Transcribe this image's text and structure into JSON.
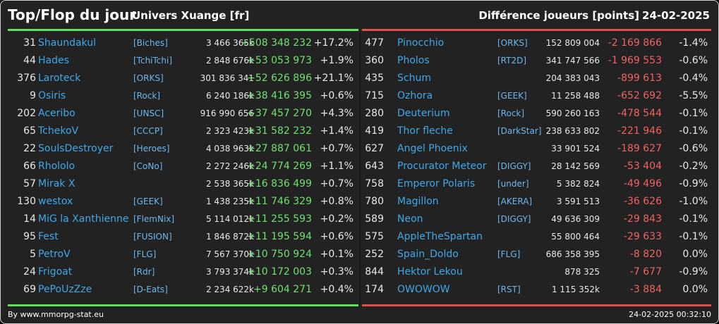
{
  "header": {
    "title": "Top/Flop du jour",
    "subtitle": "Univers Xuange [fr]",
    "diff_label": "Différence joueurs [points]",
    "date": "24-02-2025"
  },
  "colors": {
    "background": "#222222",
    "top_accent": "#5ee25e",
    "flop_accent": "#e0504a",
    "player": "#3fa7e8",
    "gain": "#6fe06f",
    "loss": "#f06262"
  },
  "top": [
    {
      "rank": "31",
      "player": "Shaundakul",
      "guild": "[Biches]",
      "points": "3 466 365k",
      "diff": "+508 348 232",
      "pct": "+17.2%"
    },
    {
      "rank": "44",
      "player": "Hades",
      "guild": "[TchiTchi]",
      "points": "2 848 676k",
      "diff": "+53 053 973",
      "pct": "+1.9%"
    },
    {
      "rank": "376",
      "player": "Laroteck",
      "guild": "[ORKS]",
      "points": "301 836 341",
      "diff": "+52 626 896",
      "pct": "+21.1%"
    },
    {
      "rank": "9",
      "player": "Osiris",
      "guild": "[Rock]",
      "points": "6 240 186k",
      "diff": "+38 416 395",
      "pct": "+0.6%"
    },
    {
      "rank": "202",
      "player": "Aceribo",
      "guild": "[UNSC]",
      "points": "916 990 656",
      "diff": "+37 457 270",
      "pct": "+4.3%"
    },
    {
      "rank": "65",
      "player": "TchekoV",
      "guild": "[CCCP]",
      "points": "2 323 423k",
      "diff": "+31 582 232",
      "pct": "+1.4%"
    },
    {
      "rank": "22",
      "player": "SoulsDestroyer",
      "guild": "[Heroes]",
      "points": "4 038 963k",
      "diff": "+27 887 061",
      "pct": "+0.7%"
    },
    {
      "rank": "66",
      "player": "Rhololo",
      "guild": "[CoNo]",
      "points": "2 272 246k",
      "diff": "+24 774 269",
      "pct": "+1.1%"
    },
    {
      "rank": "57",
      "player": "Mirak X",
      "guild": "",
      "points": "2 538 365k",
      "diff": "+16 836 499",
      "pct": "+0.7%"
    },
    {
      "rank": "130",
      "player": "westox",
      "guild": "[GEEK]",
      "points": "1 438 235k",
      "diff": "+11 746 329",
      "pct": "+0.8%"
    },
    {
      "rank": "14",
      "player": "MiG la Xanthienne",
      "guild": "[FlemNix]",
      "points": "5 114 012k",
      "diff": "+11 255 593",
      "pct": "+0.2%"
    },
    {
      "rank": "95",
      "player": "Fest",
      "guild": "[FUSION]",
      "points": "1 846 872k",
      "diff": "+11 195 594",
      "pct": "+0.6%"
    },
    {
      "rank": "5",
      "player": "PetroV",
      "guild": "[FLG]",
      "points": "7 567 370k",
      "diff": "+10 750 924",
      "pct": "+0.1%"
    },
    {
      "rank": "24",
      "player": "Frigoat",
      "guild": "[Rdr]",
      "points": "3 793 374k",
      "diff": "+10 172 003",
      "pct": "+0.3%"
    },
    {
      "rank": "69",
      "player": "PePoUzZze",
      "guild": "[D-Eats]",
      "points": "2 234 622k",
      "diff": "+9 604 271",
      "pct": "+0.4%"
    }
  ],
  "flop": [
    {
      "rank": "477",
      "player": "Pinocchio",
      "guild": "[ORKS]",
      "points": "152 809 004",
      "diff": "-2 169 866",
      "pct": "-1.4%"
    },
    {
      "rank": "360",
      "player": "Pholos",
      "guild": "[RT2D]",
      "points": "341 747 566",
      "diff": "-1 969 553",
      "pct": "-0.6%"
    },
    {
      "rank": "435",
      "player": "Schum",
      "guild": "",
      "points": "204 383 043",
      "diff": "-899 613",
      "pct": "-0.4%"
    },
    {
      "rank": "715",
      "player": "Ozhora",
      "guild": "[GEEK]",
      "points": "11 258 488",
      "diff": "-652 692",
      "pct": "-5.5%"
    },
    {
      "rank": "280",
      "player": "Deuterium",
      "guild": "[Rock]",
      "points": "590 260 163",
      "diff": "-478 544",
      "pct": "-0.1%"
    },
    {
      "rank": "419",
      "player": "Thor fleche",
      "guild": "[DarkStar]",
      "points": "238 633 802",
      "diff": "-221 946",
      "pct": "-0.1%"
    },
    {
      "rank": "627",
      "player": "Angel Phoenix",
      "guild": "",
      "points": "33 901 524",
      "diff": "-189 627",
      "pct": "-0.6%"
    },
    {
      "rank": "643",
      "player": "Procurator Meteor",
      "guild": "[DIGGY]",
      "points": "28 142 569",
      "diff": "-53 404",
      "pct": "-0.2%"
    },
    {
      "rank": "758",
      "player": "Emperor Polaris",
      "guild": "[under]",
      "points": "5 382 824",
      "diff": "-49 496",
      "pct": "-0.9%"
    },
    {
      "rank": "780",
      "player": "Magillon",
      "guild": "[AKERA]",
      "points": "3 591 513",
      "diff": "-36 626",
      "pct": "-1.0%"
    },
    {
      "rank": "589",
      "player": "Neon",
      "guild": "[DIGGY]",
      "points": "49 636 309",
      "diff": "-29 843",
      "pct": "-0.1%"
    },
    {
      "rank": "575",
      "player": "AppleTheSpartan",
      "guild": "",
      "points": "55 800 464",
      "diff": "-29 633",
      "pct": "-0.1%"
    },
    {
      "rank": "252",
      "player": "Spain_Doldo",
      "guild": "[FLG]",
      "points": "686 358 395",
      "diff": "-8 820",
      "pct": "0.0%"
    },
    {
      "rank": "844",
      "player": "Hektor Lekou",
      "guild": "",
      "points": "878 325",
      "diff": "-7 677",
      "pct": "-0.9%"
    },
    {
      "rank": "174",
      "player": "OWOWOW",
      "guild": "[RST]",
      "points": "1 115 352k",
      "diff": "-3 884",
      "pct": "0.0%"
    }
  ],
  "footer": {
    "source": "By www.mmorpg-stat.eu",
    "timestamp": "24-02-2025 00:32:10"
  }
}
